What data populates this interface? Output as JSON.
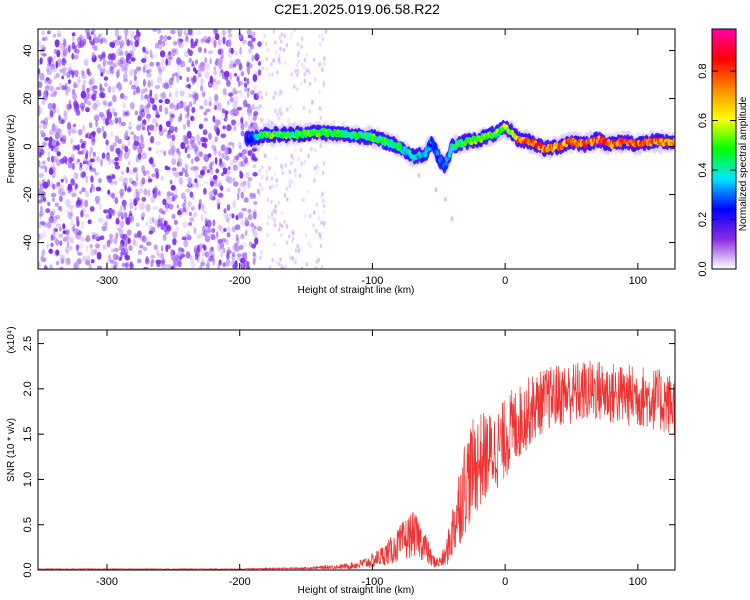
{
  "figure_title": "C2E1.2025.019.06.58.R22",
  "chart_data": [
    {
      "type": "heatmap",
      "title": "C2E1.2025.019.06.58.R22",
      "xlabel": "Height of straight line (km)",
      "ylabel": "Frequency (Hz)",
      "xlim": [
        -352,
        128
      ],
      "ylim": [
        -51,
        49
      ],
      "x_ticks": [
        -300,
        -200,
        -100,
        0,
        100
      ],
      "y_ticks": [
        -40,
        -20,
        0,
        20,
        40
      ],
      "colorbar": {
        "label": "Normalized spectral amplitude",
        "range": [
          0,
          0.97
        ],
        "ticks": [
          "0.0",
          "0.2",
          "0.4",
          "0.6",
          "0.8"
        ],
        "colormap": [
          "#ffffff",
          "#8a2be2",
          "#0000ff",
          "#00e5ff",
          "#00ff00",
          "#ffff00",
          "#ff8800",
          "#ff0000",
          "#ff00aa"
        ]
      },
      "noise_region_x": [
        -352,
        -185
      ],
      "signal_trace": {
        "x": [
          -195,
          -180,
          -160,
          -140,
          -120,
          -100,
          -90,
          -80,
          -70,
          -60,
          -55,
          -50,
          -45,
          -40,
          -30,
          -20,
          -10,
          -5,
          0,
          5,
          10,
          20,
          30,
          40,
          50,
          60,
          70,
          80,
          90,
          100,
          110,
          120,
          128
        ],
        "y": [
          3,
          5,
          5,
          6,
          5,
          4,
          2,
          0,
          -4,
          -3,
          2,
          -5,
          -8,
          0,
          2,
          3,
          5,
          6,
          8,
          6,
          3,
          2,
          -1,
          0,
          2,
          1,
          3,
          1,
          2,
          1,
          2,
          2,
          2
        ],
        "peak_amplitude": [
          0.2,
          0.55,
          0.5,
          0.55,
          0.45,
          0.5,
          0.5,
          0.45,
          0.4,
          0.35,
          0.3,
          0.3,
          0.3,
          0.45,
          0.5,
          0.55,
          0.55,
          0.55,
          0.6,
          0.55,
          0.8,
          0.85,
          0.8,
          0.75,
          0.85,
          0.85,
          0.9,
          0.8,
          0.85,
          0.8,
          0.85,
          0.8,
          0.75
        ]
      }
    },
    {
      "type": "line",
      "xlabel": "Height of straight line (km)",
      "ylabel": "SNR (10 * v/v)",
      "y_multiplier_label": "(x10⁴)",
      "color": "#ee3333",
      "xlim": [
        -352,
        128
      ],
      "ylim": [
        0,
        2.65
      ],
      "x_ticks": [
        -300,
        -200,
        -100,
        0,
        100
      ],
      "y_ticks": [
        "0.0",
        "0.5",
        "1.0",
        "1.5",
        "2.0",
        "2.5"
      ],
      "y_tick_values": [
        0,
        0.5,
        1.0,
        1.5,
        2.0,
        2.5
      ],
      "x": [
        -352,
        -200,
        -150,
        -120,
        -110,
        -100,
        -95,
        -90,
        -85,
        -80,
        -75,
        -70,
        -65,
        -60,
        -55,
        -50,
        -45,
        -40,
        -35,
        -30,
        -25,
        -20,
        -15,
        -10,
        -5,
        0,
        5,
        10,
        15,
        20,
        30,
        40,
        50,
        60,
        70,
        80,
        90,
        100,
        110,
        120,
        128
      ],
      "y": [
        0.01,
        0.01,
        0.02,
        0.04,
        0.06,
        0.1,
        0.14,
        0.18,
        0.22,
        0.28,
        0.34,
        0.4,
        0.35,
        0.25,
        0.1,
        0.08,
        0.15,
        0.4,
        0.7,
        0.95,
        1.1,
        1.2,
        1.25,
        1.3,
        1.35,
        1.45,
        1.55,
        1.62,
        1.7,
        1.78,
        1.88,
        1.93,
        1.95,
        1.97,
        1.98,
        1.95,
        1.93,
        1.92,
        1.9,
        1.85,
        1.82
      ],
      "noise_band": [
        0.005,
        0.005,
        0.01,
        0.03,
        0.05,
        0.08,
        0.1,
        0.13,
        0.16,
        0.2,
        0.24,
        0.25,
        0.22,
        0.18,
        0.08,
        0.06,
        0.12,
        0.3,
        0.45,
        0.55,
        0.55,
        0.55,
        0.5,
        0.45,
        0.45,
        0.45,
        0.45,
        0.42,
        0.4,
        0.38,
        0.35,
        0.35,
        0.35,
        0.35,
        0.35,
        0.35,
        0.35,
        0.35,
        0.35,
        0.35,
        0.35
      ]
    }
  ]
}
